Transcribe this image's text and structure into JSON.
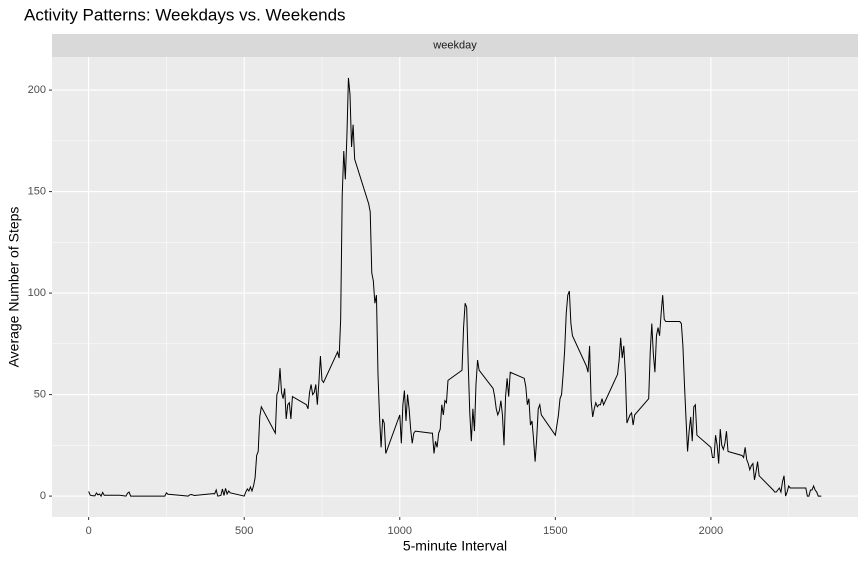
{
  "chart_data": {
    "type": "line",
    "title": "Activity Patterns: Weekdays vs. Weekends",
    "facet": "weekday",
    "x_label": "5-minute Interval",
    "y_label": "Average Number of Steps",
    "color": "#000000",
    "grid": true,
    "xlim": [
      -117.75,
      2472.75
    ],
    "ylim": [
      -10.3,
      216.3
    ],
    "xticks": [
      0,
      500,
      1000,
      1500,
      2000
    ],
    "yticks": [
      0,
      50,
      100,
      150,
      200
    ],
    "xminor": [
      250,
      750,
      1250,
      1750,
      2250
    ],
    "yminor": [
      25,
      75,
      125,
      175
    ],
    "x": [
      0,
      5,
      10,
      20,
      25,
      30,
      35,
      40,
      45,
      50,
      100,
      120,
      125,
      130,
      135,
      200,
      245,
      250,
      255,
      300,
      320,
      325,
      330,
      340,
      400,
      405,
      410,
      415,
      425,
      430,
      435,
      440,
      445,
      450,
      455,
      500,
      505,
      510,
      515,
      520,
      525,
      530,
      535,
      540,
      545,
      550,
      555,
      600,
      605,
      610,
      615,
      620,
      625,
      630,
      635,
      640,
      645,
      650,
      655,
      700,
      705,
      710,
      715,
      720,
      725,
      730,
      735,
      740,
      745,
      750,
      755,
      800,
      805,
      810,
      815,
      820,
      825,
      830,
      835,
      840,
      845,
      850,
      855,
      900,
      905,
      910,
      915,
      920,
      925,
      930,
      935,
      940,
      945,
      950,
      955,
      1000,
      1005,
      1010,
      1015,
      1020,
      1025,
      1030,
      1035,
      1040,
      1045,
      1050,
      1100,
      1105,
      1110,
      1115,
      1120,
      1125,
      1130,
      1135,
      1140,
      1145,
      1150,
      1155,
      1200,
      1205,
      1210,
      1215,
      1220,
      1225,
      1230,
      1235,
      1240,
      1245,
      1250,
      1255,
      1300,
      1305,
      1310,
      1315,
      1320,
      1325,
      1330,
      1335,
      1340,
      1345,
      1350,
      1355,
      1400,
      1405,
      1410,
      1415,
      1420,
      1425,
      1430,
      1435,
      1440,
      1445,
      1450,
      1455,
      1500,
      1505,
      1510,
      1515,
      1520,
      1525,
      1530,
      1535,
      1540,
      1545,
      1550,
      1555,
      1600,
      1605,
      1610,
      1615,
      1620,
      1625,
      1630,
      1635,
      1640,
      1645,
      1650,
      1655,
      1700,
      1705,
      1710,
      1715,
      1720,
      1725,
      1730,
      1735,
      1740,
      1745,
      1750,
      1755,
      1800,
      1805,
      1810,
      1815,
      1820,
      1825,
      1830,
      1835,
      1840,
      1845,
      1850,
      1855,
      1900,
      1905,
      1910,
      1915,
      1920,
      1925,
      1930,
      1935,
      1940,
      1945,
      1950,
      1955,
      2000,
      2005,
      2010,
      2015,
      2020,
      2025,
      2030,
      2035,
      2040,
      2045,
      2050,
      2055,
      2100,
      2105,
      2110,
      2115,
      2120,
      2125,
      2130,
      2135,
      2140,
      2145,
      2150,
      2155,
      2200,
      2205,
      2210,
      2215,
      2220,
      2225,
      2230,
      2235,
      2240,
      2245,
      2250,
      2255,
      2300,
      2305,
      2310,
      2315,
      2320,
      2325,
      2330,
      2335,
      2340,
      2345,
      2355
    ],
    "values": [
      2.3,
      0.5,
      0.2,
      0.1,
      1.5,
      0.6,
      1,
      0,
      1.8,
      0.4,
      0.4,
      0,
      1.4,
      2,
      0,
      0,
      0,
      1.6,
      0.9,
      0.3,
      0,
      0.6,
      0.8,
      0.3,
      1.2,
      1.1,
      3,
      0,
      0.3,
      3.5,
      0.3,
      3.8,
      1,
      2.5,
      1.6,
      0,
      2,
      3.5,
      2.5,
      4.5,
      2.5,
      5,
      9,
      20,
      22,
      39,
      44,
      31,
      50,
      52,
      63,
      51,
      48,
      53,
      38,
      45,
      46,
      38,
      49,
      45,
      43,
      51,
      55,
      50,
      51,
      55,
      45,
      56,
      69,
      57,
      56,
      71,
      68,
      87,
      148,
      170,
      156,
      177,
      206,
      198,
      172,
      183,
      166,
      144,
      140,
      110,
      106,
      95,
      99,
      60,
      39,
      24,
      38,
      36,
      21,
      40,
      26,
      45,
      52,
      37,
      50,
      43,
      33,
      26,
      31,
      32,
      31,
      31,
      21,
      27,
      24,
      31,
      33,
      45,
      40,
      47,
      46,
      57,
      62,
      83,
      95,
      93,
      65,
      41,
      27,
      43,
      32,
      55,
      67,
      62,
      53,
      49,
      43,
      40,
      42,
      47,
      40,
      25,
      49,
      58,
      49,
      61,
      58,
      54,
      45,
      48,
      35,
      37,
      28,
      17,
      28,
      43,
      45,
      40,
      30,
      35,
      40,
      48,
      50,
      60,
      72,
      90,
      99,
      101,
      85,
      79,
      64,
      61,
      74,
      47,
      39,
      43,
      46,
      44,
      45,
      45,
      48,
      45,
      60,
      67,
      78,
      68,
      74,
      60,
      36,
      38,
      40,
      41,
      35,
      40,
      48,
      71,
      85,
      70,
      61,
      79,
      83,
      79,
      90,
      99,
      87,
      86,
      86,
      85,
      74,
      55,
      38,
      22,
      32,
      39,
      27,
      44,
      45,
      30,
      24,
      19,
      19,
      30,
      25,
      16,
      33,
      25,
      23,
      26,
      32,
      22,
      20,
      19,
      24,
      18,
      16,
      13,
      15,
      16,
      8,
      12,
      17,
      10,
      3,
      2,
      2,
      3,
      4,
      2,
      7,
      10,
      0,
      2,
      5,
      4,
      4,
      4,
      0,
      0,
      3,
      3,
      5,
      3,
      2,
      0,
      0
    ]
  }
}
